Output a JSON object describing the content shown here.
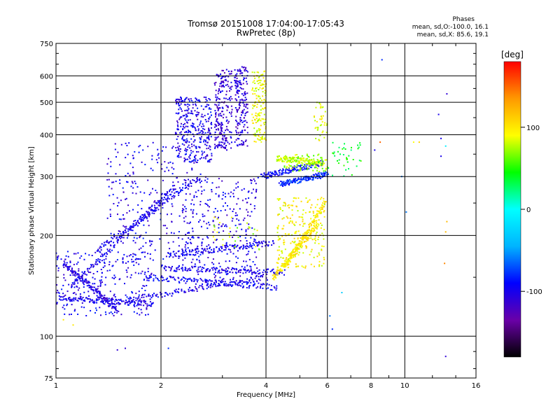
{
  "chart_data": {
    "type": "scatter",
    "title": "Tromsø 20151008 17:04:00-17:05:43",
    "subtitle": "RwPretec (8p)",
    "xlabel": "Frequency [MHz]",
    "ylabel": "Stationary phase Virtual Height [km]",
    "x_scale": "log",
    "y_scale": "log",
    "xlim": [
      1,
      16
    ],
    "ylim": [
      75,
      750
    ],
    "x_ticks": [
      1,
      2,
      4,
      6,
      8,
      10,
      16
    ],
    "y_ticks": [
      75,
      100,
      200,
      300,
      400,
      500,
      600,
      750
    ],
    "grid": true,
    "annotation": {
      "heading": "Phases",
      "line1": "mean, sd,O:-100.0, 16.1",
      "line2": "mean, sd,X:  85.6, 19.1"
    },
    "colorbar": {
      "label": "[deg]",
      "range": [
        -180,
        180
      ],
      "ticks": [
        100,
        0,
        -100
      ],
      "colors": [
        "#000000",
        "#6a00a8",
        "#0000ff",
        "#00b4ff",
        "#00ffff",
        "#00ff00",
        "#ffff00",
        "#ff9900",
        "#ff0000"
      ]
    },
    "traces": [
      {
        "f_start": 1.02,
        "f_end": 1.9,
        "h_start": 130,
        "h_end": 125,
        "phase": -100
      },
      {
        "f_start": 1.05,
        "f_end": 1.5,
        "h_start": 165,
        "h_end": 120,
        "phase": -105
      },
      {
        "f_start": 1.6,
        "f_end": 4.0,
        "h_start": 128,
        "h_end": 150,
        "phase": -100
      },
      {
        "f_start": 1.8,
        "f_end": 4.3,
        "h_start": 150,
        "h_end": 140,
        "phase": -95
      },
      {
        "f_start": 2.0,
        "f_end": 4.5,
        "h_start": 160,
        "h_end": 155,
        "phase": -100
      },
      {
        "f_start": 2.1,
        "f_end": 4.2,
        "h_start": 175,
        "h_end": 190,
        "phase": -100
      },
      {
        "f_start": 1.1,
        "f_end": 2.2,
        "h_start": 140,
        "h_end": 280,
        "phase": -100
      },
      {
        "f_start": 1.3,
        "f_end": 2.6,
        "h_start": 180,
        "h_end": 300,
        "phase": -100
      },
      {
        "f_start": 4.2,
        "f_end": 5.6,
        "h_start": 150,
        "h_end": 215,
        "phase": 100
      },
      {
        "f_start": 4.5,
        "f_end": 5.9,
        "h_start": 160,
        "h_end": 250,
        "phase": 100
      },
      {
        "f_start": 3.9,
        "f_end": 5.8,
        "h_start": 300,
        "h_end": 330,
        "phase": -90
      },
      {
        "f_start": 4.3,
        "f_end": 5.8,
        "h_start": 340,
        "h_end": 330,
        "phase": 80
      },
      {
        "f_start": 4.4,
        "f_end": 6.0,
        "h_start": 285,
        "h_end": 305,
        "phase": -80
      }
    ],
    "clusters": [
      {
        "f_min": 2.2,
        "f_max": 2.8,
        "h_min": 330,
        "h_max": 520,
        "phase": -100,
        "density": 340
      },
      {
        "f_min": 2.85,
        "f_max": 3.2,
        "h_min": 360,
        "h_max": 630,
        "phase": -110,
        "density": 220
      },
      {
        "f_min": 3.25,
        "f_max": 3.55,
        "h_min": 370,
        "h_max": 640,
        "phase": -110,
        "density": 180
      },
      {
        "f_min": 3.65,
        "f_max": 4.0,
        "h_min": 380,
        "h_max": 620,
        "phase": 90,
        "density": 160
      },
      {
        "f_min": 4.3,
        "f_max": 5.9,
        "h_min": 160,
        "h_max": 260,
        "phase": 95,
        "density": 220
      },
      {
        "f_min": 4.5,
        "f_max": 6.0,
        "h_min": 310,
        "h_max": 350,
        "phase": 70,
        "density": 90
      },
      {
        "f_min": 1.0,
        "f_max": 1.9,
        "h_min": 115,
        "h_max": 180,
        "phase": -100,
        "density": 260
      },
      {
        "f_min": 1.4,
        "f_max": 2.5,
        "h_min": 170,
        "h_max": 380,
        "phase": -100,
        "density": 260
      },
      {
        "f_min": 2.3,
        "f_max": 3.8,
        "h_min": 145,
        "h_max": 300,
        "phase": -100,
        "density": 320
      },
      {
        "f_min": 2.8,
        "f_max": 3.9,
        "h_min": 180,
        "h_max": 230,
        "phase": 80,
        "density": 30
      },
      {
        "f_min": 6.0,
        "f_max": 7.5,
        "h_min": 300,
        "h_max": 380,
        "phase": 40,
        "density": 40
      },
      {
        "f_min": 5.5,
        "f_max": 6.0,
        "h_min": 380,
        "h_max": 500,
        "phase": 90,
        "density": 40
      }
    ],
    "points": [
      {
        "f": 8.6,
        "h": 670,
        "phase": -80
      },
      {
        "f": 13.2,
        "h": 530,
        "phase": -110
      },
      {
        "f": 12.5,
        "h": 460,
        "phase": -100
      },
      {
        "f": 12.7,
        "h": 390,
        "phase": -100
      },
      {
        "f": 13.1,
        "h": 370,
        "phase": -10
      },
      {
        "f": 12.7,
        "h": 345,
        "phase": -100
      },
      {
        "f": 11.0,
        "h": 380,
        "phase": 110
      },
      {
        "f": 10.6,
        "h": 380,
        "phase": 90
      },
      {
        "f": 9.8,
        "h": 300,
        "phase": -60
      },
      {
        "f": 10.1,
        "h": 235,
        "phase": -60
      },
      {
        "f": 13.2,
        "h": 220,
        "phase": 120
      },
      {
        "f": 13.1,
        "h": 205,
        "phase": 120
      },
      {
        "f": 13.0,
        "h": 165,
        "phase": 140
      },
      {
        "f": 13.1,
        "h": 87,
        "phase": -110
      },
      {
        "f": 1.5,
        "h": 91,
        "phase": -110
      },
      {
        "f": 1.58,
        "h": 92,
        "phase": -110
      },
      {
        "f": 2.1,
        "h": 92,
        "phase": -80
      },
      {
        "f": 6.2,
        "h": 105,
        "phase": -80
      },
      {
        "f": 6.1,
        "h": 115,
        "phase": -60
      },
      {
        "f": 6.6,
        "h": 135,
        "phase": -30
      },
      {
        "f": 1.12,
        "h": 108,
        "phase": 100
      },
      {
        "f": 1.05,
        "h": 112,
        "phase": 100
      },
      {
        "f": 8.2,
        "h": 360,
        "phase": -100
      },
      {
        "f": 8.5,
        "h": 380,
        "phase": 150
      }
    ]
  }
}
